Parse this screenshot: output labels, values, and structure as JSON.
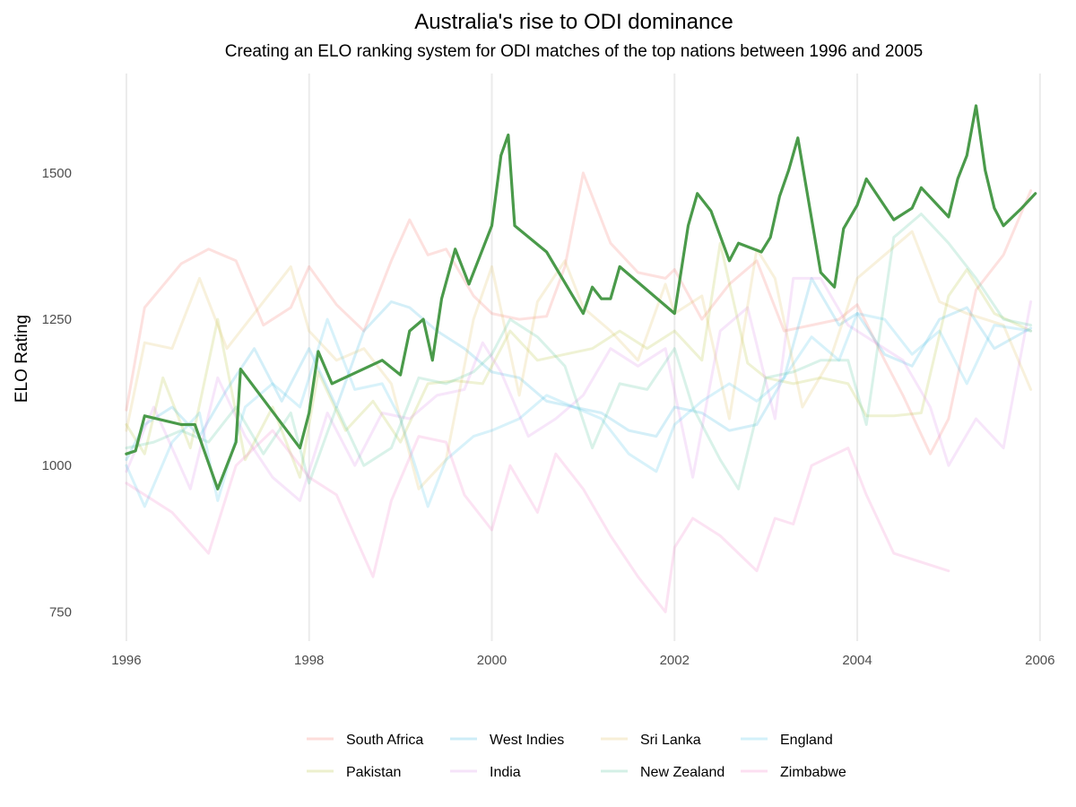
{
  "chart_data": {
    "type": "line",
    "title": "Australia's rise to ODI dominance",
    "subtitle": "Creating an ELO ranking system for ODI matches of the top nations between 1996 and 2005",
    "xlabel": "",
    "ylabel": "ELO Rating",
    "xlim": [
      1995.5,
      2006.1
    ],
    "ylim": [
      700,
      1670
    ],
    "x_ticks": [
      1996,
      1998,
      2000,
      2002,
      2004,
      2006
    ],
    "x_tick_labels": [
      "1996",
      "1998",
      "2000",
      "2002",
      "2004",
      "2006"
    ],
    "y_ticks": [
      750,
      1000,
      1250,
      1500
    ],
    "y_tick_labels": [
      "750",
      "1000",
      "1250",
      "1500"
    ],
    "grid": "vertical major lines only",
    "legend_position": "bottom",
    "highlight": {
      "name": "Australia",
      "color": "#4a9a4a"
    },
    "series": [
      {
        "name": "South Africa",
        "color": "#f8766d",
        "x": [
          1996.0,
          1996.2,
          1996.6,
          1996.9,
          1997.2,
          1997.5,
          1997.8,
          1998.0,
          1998.3,
          1998.6,
          1998.9,
          1999.1,
          1999.3,
          1999.5,
          1999.8,
          2000.0,
          2000.3,
          2000.6,
          2000.8,
          2001.0,
          2001.3,
          2001.6,
          2001.9,
          2002.0,
          2002.3,
          2002.6,
          2002.9,
          2003.2,
          2003.5,
          2003.8,
          2004.0,
          2004.3,
          2004.5,
          2004.8,
          2005.0,
          2005.3,
          2005.6,
          2005.9
        ],
        "y": [
          1095,
          1270,
          1345,
          1370,
          1350,
          1240,
          1270,
          1340,
          1275,
          1230,
          1350,
          1420,
          1360,
          1370,
          1290,
          1260,
          1250,
          1255,
          1340,
          1500,
          1380,
          1330,
          1320,
          1335,
          1250,
          1310,
          1350,
          1230,
          1240,
          1250,
          1275,
          1180,
          1120,
          1020,
          1080,
          1300,
          1360,
          1470
        ]
      },
      {
        "name": "Pakistan",
        "color": "#b8c43a",
        "x": [
          1996.0,
          1996.2,
          1996.4,
          1996.7,
          1997.0,
          1997.3,
          1997.6,
          1997.9,
          1998.1,
          1998.4,
          1998.7,
          1999.0,
          1999.3,
          1999.6,
          1999.9,
          2000.2,
          2000.5,
          2000.8,
          2001.1,
          2001.4,
          2001.7,
          2002.0,
          2002.3,
          2002.5,
          2002.8,
          2003.0,
          2003.3,
          2003.6,
          2003.9,
          2004.1,
          2004.4,
          2004.7,
          2005.0,
          2005.2,
          2005.5,
          2005.9
        ],
        "y": [
          1070,
          1020,
          1150,
          1030,
          1250,
          1010,
          1100,
          980,
          1160,
          1060,
          1110,
          1040,
          1140,
          1145,
          1140,
          1230,
          1180,
          1190,
          1200,
          1230,
          1200,
          1230,
          1180,
          1380,
          1175,
          1150,
          1140,
          1150,
          1140,
          1085,
          1085,
          1090,
          1290,
          1335,
          1260,
          1230
        ]
      },
      {
        "name": "West Indies",
        "color": "#39b8e0",
        "x": [
          1996.0,
          1996.2,
          1996.5,
          1996.8,
          1997.1,
          1997.4,
          1997.7,
          1998.0,
          1998.3,
          1998.6,
          1998.9,
          1999.1,
          1999.4,
          1999.7,
          2000.0,
          2000.3,
          2000.6,
          2000.9,
          2001.2,
          2001.5,
          2001.8,
          2002.0,
          2002.3,
          2002.6,
          2002.9,
          2003.2,
          2003.5,
          2003.8,
          2004.0,
          2004.3,
          2004.6,
          2004.9,
          2005.2,
          2005.5,
          2005.9
        ],
        "y": [
          1010,
          1070,
          1100,
          1050,
          1130,
          1200,
          1110,
          1200,
          1100,
          1230,
          1280,
          1270,
          1230,
          1200,
          1160,
          1150,
          1110,
          1100,
          1090,
          1060,
          1050,
          1100,
          1090,
          1060,
          1070,
          1150,
          1320,
          1240,
          1260,
          1190,
          1170,
          1250,
          1270,
          1200,
          1235
        ]
      },
      {
        "name": "India",
        "color": "#d98ee8",
        "x": [
          1996.0,
          1996.3,
          1996.7,
          1997.0,
          1997.3,
          1997.6,
          1997.9,
          1998.2,
          1998.5,
          1998.8,
          1999.1,
          1999.4,
          1999.7,
          1999.9,
          2000.1,
          2000.4,
          2000.7,
          2001.0,
          2001.3,
          2001.6,
          2001.9,
          2002.2,
          2002.5,
          2002.8,
          2003.1,
          2003.3,
          2003.6,
          2003.9,
          2004.2,
          2004.5,
          2004.8,
          2005.0,
          2005.3,
          2005.6,
          2005.9
        ],
        "y": [
          990,
          1100,
          960,
          1150,
          1050,
          980,
          940,
          1090,
          1000,
          1090,
          1080,
          1120,
          1130,
          1210,
          1160,
          1050,
          1080,
          1120,
          1200,
          1170,
          1200,
          980,
          1230,
          1270,
          1080,
          1320,
          1320,
          1240,
          1210,
          1180,
          1100,
          1000,
          1080,
          1030,
          1280
        ]
      },
      {
        "name": "Sri Lanka",
        "color": "#e1c061",
        "x": [
          1996.0,
          1996.2,
          1996.5,
          1996.8,
          1997.1,
          1997.4,
          1997.8,
          1998.0,
          1998.3,
          1998.6,
          1998.9,
          1999.2,
          1999.5,
          1999.8,
          2000.0,
          2000.3,
          2000.5,
          2000.8,
          2001.0,
          2001.3,
          2001.6,
          2001.9,
          2002.0,
          2002.3,
          2002.6,
          2002.9,
          2003.1,
          2003.4,
          2003.7,
          2004.0,
          2004.3,
          2004.6,
          2004.9,
          2005.2,
          2005.6,
          2005.9
        ],
        "y": [
          1060,
          1210,
          1200,
          1320,
          1200,
          1260,
          1340,
          1230,
          1180,
          1200,
          1140,
          960,
          1010,
          1250,
          1340,
          1120,
          1280,
          1350,
          1270,
          1230,
          1180,
          1310,
          1260,
          1290,
          1080,
          1370,
          1320,
          1100,
          1180,
          1320,
          1360,
          1400,
          1280,
          1260,
          1240,
          1130
        ]
      },
      {
        "name": "New Zealand",
        "color": "#53c59a",
        "x": [
          1996.0,
          1996.3,
          1996.6,
          1996.9,
          1997.2,
          1997.5,
          1997.8,
          1998.0,
          1998.3,
          1998.6,
          1998.9,
          1999.2,
          1999.5,
          1999.8,
          2000.0,
          2000.2,
          2000.5,
          2000.8,
          2001.1,
          2001.4,
          2001.7,
          2002.0,
          2002.2,
          2002.5,
          2002.7,
          2003.0,
          2003.3,
          2003.6,
          2003.9,
          2004.1,
          2004.4,
          2004.7,
          2005.0,
          2005.3,
          2005.6,
          2005.9
        ],
        "y": [
          1030,
          1040,
          1060,
          1040,
          1100,
          1020,
          1090,
          970,
          1100,
          1000,
          1030,
          1150,
          1140,
          1160,
          1190,
          1250,
          1220,
          1170,
          1030,
          1140,
          1130,
          1200,
          1100,
          1010,
          960,
          1150,
          1160,
          1180,
          1180,
          1070,
          1390,
          1430,
          1380,
          1320,
          1250,
          1240
        ]
      },
      {
        "name": "England",
        "color": "#4ec6ea",
        "x": [
          1996.0,
          1996.2,
          1996.5,
          1996.8,
          1997.0,
          1997.3,
          1997.6,
          1997.9,
          1998.2,
          1998.5,
          1998.8,
          1999.0,
          1999.3,
          1999.5,
          1999.8,
          2000.0,
          2000.3,
          2000.6,
          2000.9,
          2001.2,
          2001.5,
          2001.8,
          2002.0,
          2002.3,
          2002.6,
          2002.9,
          2003.2,
          2003.5,
          2003.8,
          2004.0,
          2004.3,
          2004.6,
          2004.9,
          2005.2,
          2005.5,
          2005.9
        ],
        "y": [
          1000,
          930,
          1040,
          1090,
          940,
          1100,
          1140,
          1100,
          1250,
          1130,
          1140,
          1080,
          930,
          1010,
          1050,
          1060,
          1080,
          1120,
          1100,
          1080,
          1020,
          990,
          1070,
          1110,
          1140,
          1110,
          1150,
          1220,
          1180,
          1260,
          1250,
          1190,
          1230,
          1140,
          1240,
          1230
        ]
      },
      {
        "name": "Zimbabwe",
        "color": "#f37fc7",
        "x": [
          1996.0,
          1996.5,
          1996.9,
          1997.2,
          1997.6,
          1998.0,
          1998.3,
          1998.7,
          1998.9,
          1999.2,
          1999.5,
          1999.7,
          2000.0,
          2000.2,
          2000.5,
          2000.7,
          2001.0,
          2001.3,
          2001.6,
          2001.9,
          2002.0,
          2002.2,
          2002.5,
          2002.9,
          2003.1,
          2003.3,
          2003.5,
          2003.9,
          2004.1,
          2004.4,
          2005.0
        ],
        "y": [
          970,
          920,
          850,
          1000,
          1060,
          980,
          950,
          810,
          940,
          1050,
          1040,
          950,
          890,
          1000,
          920,
          1020,
          960,
          880,
          810,
          750,
          860,
          910,
          880,
          820,
          910,
          900,
          1000,
          1030,
          950,
          850,
          820
        ]
      },
      {
        "name": "Australia",
        "color": "#4a9a4a",
        "highlight": true,
        "x": [
          1996.0,
          1996.1,
          1996.2,
          1996.6,
          1996.75,
          1997.0,
          1997.2,
          1997.25,
          1997.9,
          1998.0,
          1998.1,
          1998.25,
          1998.8,
          1999.0,
          1999.1,
          1999.25,
          1999.35,
          1999.45,
          1999.6,
          1999.75,
          2000.0,
          2000.1,
          2000.18,
          2000.25,
          2000.6,
          2001.0,
          2001.1,
          2001.2,
          2001.3,
          2001.4,
          2002.0,
          2002.15,
          2002.25,
          2002.4,
          2002.6,
          2002.7,
          2002.95,
          2003.05,
          2003.15,
          2003.25,
          2003.35,
          2003.6,
          2003.75,
          2003.85,
          2004.0,
          2004.1,
          2004.4,
          2004.6,
          2004.7,
          2005.0,
          2005.1,
          2005.2,
          2005.3,
          2005.4,
          2005.5,
          2005.6,
          2005.8,
          2005.95
        ],
        "y": [
          1020,
          1025,
          1085,
          1070,
          1070,
          960,
          1040,
          1165,
          1030,
          1090,
          1195,
          1140,
          1180,
          1155,
          1230,
          1250,
          1180,
          1285,
          1370,
          1310,
          1410,
          1530,
          1565,
          1410,
          1365,
          1260,
          1305,
          1285,
          1285,
          1340,
          1260,
          1410,
          1465,
          1435,
          1350,
          1380,
          1365,
          1390,
          1460,
          1505,
          1560,
          1330,
          1305,
          1405,
          1445,
          1490,
          1420,
          1440,
          1475,
          1425,
          1490,
          1530,
          1615,
          1505,
          1440,
          1410,
          1440,
          1465
        ]
      }
    ]
  }
}
